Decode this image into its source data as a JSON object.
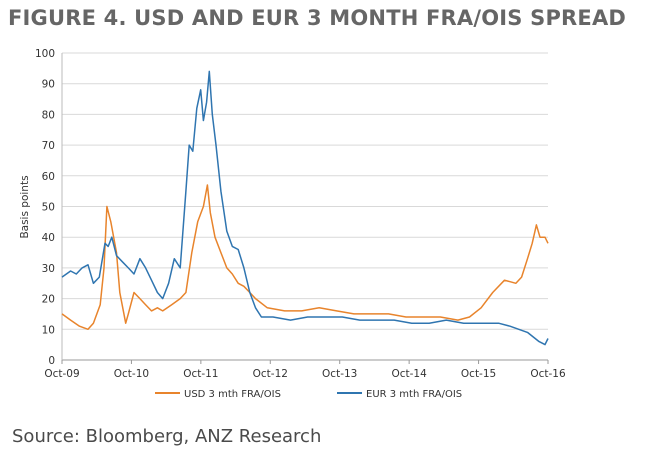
{
  "title": "FIGURE 4. USD AND EUR 3 MONTH FRA/OIS SPREAD",
  "source": "Source: Bloomberg, ANZ Research",
  "colors": {
    "usd": "#e8842c",
    "eur": "#2f75b0",
    "grid": "#d9d9d9",
    "axis": "#999999"
  },
  "chart_data": {
    "type": "line",
    "ylabel": "Basis points",
    "xlabel": "",
    "ylim": [
      0,
      100
    ],
    "yticks": [
      0,
      10,
      20,
      30,
      40,
      50,
      60,
      70,
      80,
      90,
      100
    ],
    "xlim": [
      "2009-10-01",
      "2016-10-01"
    ],
    "xticks": [
      "Oct-09",
      "Oct-10",
      "Oct-11",
      "Oct-12",
      "Oct-13",
      "Oct-14",
      "Oct-15",
      "Oct-16"
    ],
    "grid": true,
    "legend_position": "bottom",
    "series": [
      {
        "name": "USD 3 mth FRA/OIS",
        "color": "#e8842c",
        "points": [
          [
            "2009-10-01",
            15
          ],
          [
            "2009-11-15",
            13
          ],
          [
            "2010-01-01",
            11
          ],
          [
            "2010-02-15",
            10
          ],
          [
            "2010-03-15",
            12
          ],
          [
            "2010-04-20",
            18
          ],
          [
            "2010-05-10",
            30
          ],
          [
            "2010-05-25",
            50
          ],
          [
            "2010-06-15",
            45
          ],
          [
            "2010-07-15",
            35
          ],
          [
            "2010-08-01",
            22
          ],
          [
            "2010-09-01",
            12
          ],
          [
            "2010-09-15",
            15
          ],
          [
            "2010-10-15",
            22
          ],
          [
            "2010-11-15",
            20
          ],
          [
            "2010-12-15",
            18
          ],
          [
            "2011-01-15",
            16
          ],
          [
            "2011-02-15",
            17
          ],
          [
            "2011-03-15",
            16
          ],
          [
            "2011-05-01",
            18
          ],
          [
            "2011-06-15",
            20
          ],
          [
            "2011-07-15",
            22
          ],
          [
            "2011-08-15",
            35
          ],
          [
            "2011-09-15",
            45
          ],
          [
            "2011-10-15",
            50
          ],
          [
            "2011-11-05",
            57
          ],
          [
            "2011-11-20",
            48
          ],
          [
            "2011-12-15",
            40
          ],
          [
            "2012-01-15",
            35
          ],
          [
            "2012-02-15",
            30
          ],
          [
            "2012-03-15",
            28
          ],
          [
            "2012-04-15",
            25
          ],
          [
            "2012-05-15",
            24
          ],
          [
            "2012-06-15",
            22
          ],
          [
            "2012-07-15",
            20
          ],
          [
            "2012-09-15",
            17
          ],
          [
            "2012-12-15",
            16
          ],
          [
            "2013-03-15",
            16
          ],
          [
            "2013-06-15",
            17
          ],
          [
            "2013-09-15",
            16
          ],
          [
            "2013-12-15",
            15
          ],
          [
            "2014-03-15",
            15
          ],
          [
            "2014-06-15",
            15
          ],
          [
            "2014-09-15",
            14
          ],
          [
            "2014-12-15",
            14
          ],
          [
            "2015-03-15",
            14
          ],
          [
            "2015-06-15",
            13
          ],
          [
            "2015-08-15",
            14
          ],
          [
            "2015-10-15",
            17
          ],
          [
            "2015-12-15",
            22
          ],
          [
            "2016-02-15",
            26
          ],
          [
            "2016-04-15",
            25
          ],
          [
            "2016-05-15",
            27
          ],
          [
            "2016-06-15",
            33
          ],
          [
            "2016-07-10",
            38
          ],
          [
            "2016-08-01",
            44
          ],
          [
            "2016-08-20",
            40
          ],
          [
            "2016-09-15",
            40
          ],
          [
            "2016-10-01",
            38
          ]
        ]
      },
      {
        "name": "EUR 3 mth FRA/OIS",
        "color": "#2f75b0",
        "points": [
          [
            "2009-10-01",
            27
          ],
          [
            "2009-11-15",
            29
          ],
          [
            "2009-12-15",
            28
          ],
          [
            "2010-01-15",
            30
          ],
          [
            "2010-02-15",
            31
          ],
          [
            "2010-03-15",
            25
          ],
          [
            "2010-04-15",
            27
          ],
          [
            "2010-05-15",
            38
          ],
          [
            "2010-06-01",
            37
          ],
          [
            "2010-06-20",
            40
          ],
          [
            "2010-07-15",
            34
          ],
          [
            "2010-08-15",
            32
          ],
          [
            "2010-09-15",
            30
          ],
          [
            "2010-10-15",
            28
          ],
          [
            "2010-11-15",
            33
          ],
          [
            "2010-12-15",
            30
          ],
          [
            "2011-01-15",
            26
          ],
          [
            "2011-02-15",
            22
          ],
          [
            "2011-03-15",
            20
          ],
          [
            "2011-04-15",
            25
          ],
          [
            "2011-05-15",
            33
          ],
          [
            "2011-06-15",
            30
          ],
          [
            "2011-07-15",
            55
          ],
          [
            "2011-08-01",
            70
          ],
          [
            "2011-08-20",
            68
          ],
          [
            "2011-09-10",
            82
          ],
          [
            "2011-10-01",
            88
          ],
          [
            "2011-10-15",
            78
          ],
          [
            "2011-11-01",
            84
          ],
          [
            "2011-11-15",
            94
          ],
          [
            "2011-12-01",
            80
          ],
          [
            "2011-12-20",
            70
          ],
          [
            "2012-01-15",
            55
          ],
          [
            "2012-02-15",
            42
          ],
          [
            "2012-03-15",
            37
          ],
          [
            "2012-04-15",
            36
          ],
          [
            "2012-05-15",
            30
          ],
          [
            "2012-06-15",
            22
          ],
          [
            "2012-07-15",
            17
          ],
          [
            "2012-08-15",
            14
          ],
          [
            "2012-10-15",
            14
          ],
          [
            "2013-01-15",
            13
          ],
          [
            "2013-04-15",
            14
          ],
          [
            "2013-07-15",
            14
          ],
          [
            "2013-10-15",
            14
          ],
          [
            "2014-01-15",
            13
          ],
          [
            "2014-04-15",
            13
          ],
          [
            "2014-07-15",
            13
          ],
          [
            "2014-10-15",
            12
          ],
          [
            "2015-01-15",
            12
          ],
          [
            "2015-04-15",
            13
          ],
          [
            "2015-07-15",
            12
          ],
          [
            "2015-10-15",
            12
          ],
          [
            "2016-01-15",
            12
          ],
          [
            "2016-03-15",
            11
          ],
          [
            "2016-06-15",
            9
          ],
          [
            "2016-08-15",
            6
          ],
          [
            "2016-09-15",
            5
          ],
          [
            "2016-10-01",
            7
          ]
        ]
      }
    ]
  }
}
